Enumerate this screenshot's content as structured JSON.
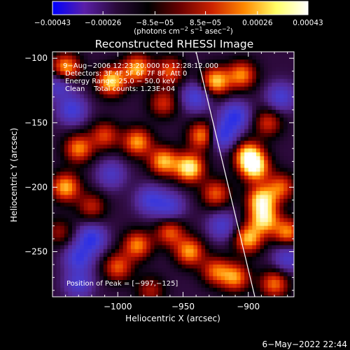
{
  "chart_data": {
    "type": "heatmap",
    "title": "Reconstructed RHESSI Image",
    "xlabel": "Heliocentric X (arcsec)",
    "ylabel": "Heliocentric Y (arcsec)",
    "xlim": [
      -1050,
      -865
    ],
    "ylim": [
      -285,
      -95
    ],
    "x_ticks": [
      -1000,
      -950,
      -900
    ],
    "y_ticks": [
      -100,
      -150,
      -200,
      -250
    ],
    "x_tick_labels": [
      "−1000",
      "−950",
      "−900"
    ],
    "y_tick_labels": [
      "−100",
      "−150",
      "−200",
      "−250"
    ],
    "colorbar": {
      "range": [
        -0.00043,
        0.00043
      ],
      "ticks": [
        -0.00043,
        -0.00026,
        -8.5e-05,
        8.5e-05,
        0.00026,
        0.00043
      ],
      "tick_labels": [
        "−0.00043",
        "−0.00026",
        "−8.5e−05",
        "8.5e−05",
        "0.00026",
        "0.00043"
      ],
      "units_prefix": "(photons cm",
      "units_sup1": "−2",
      "units_mid1": " s",
      "units_sup2": "−1",
      "units_mid2": " asec",
      "units_sup3": "−2",
      "units_suffix": ")",
      "colors": [
        "#0000ff",
        "#5a1fa8",
        "#2a0a3a",
        "#000000",
        "#6a0000",
        "#cc2200",
        "#ff8800",
        "#ffff66",
        "#ffffff"
      ]
    },
    "annotations": [
      "9−Aug−2006 12:23:20.000 to 12:28:12.000",
      "Detectors: 3F 4F 5F 6F 7F 8F, Att 0",
      "Energy Range: 25.0 − 50.0 keV",
      "Clean    Total counts: 1.23E+04"
    ],
    "peak_label": "Position of Peak = [−997,−125]",
    "limb_line": [
      [
        -940,
        -95
      ],
      [
        -895,
        -285
      ]
    ],
    "blobs": [
      {
        "x": -1040,
        "y": -108,
        "v": 0.85
      },
      {
        "x": -985,
        "y": -108,
        "v": 0.8
      },
      {
        "x": -1005,
        "y": -118,
        "v": 0.9
      },
      {
        "x": -960,
        "y": -110,
        "v": 0.6
      },
      {
        "x": -925,
        "y": -118,
        "v": 0.85
      },
      {
        "x": -905,
        "y": -113,
        "v": 0.7
      },
      {
        "x": -965,
        "y": -135,
        "v": 0.5
      },
      {
        "x": -1030,
        "y": -170,
        "v": 0.7
      },
      {
        "x": -1040,
        "y": -200,
        "v": 0.8
      },
      {
        "x": -985,
        "y": -165,
        "v": 0.75
      },
      {
        "x": -965,
        "y": -180,
        "v": 0.8
      },
      {
        "x": -945,
        "y": -185,
        "v": 1.0
      },
      {
        "x": -1010,
        "y": -160,
        "v": 0.55
      },
      {
        "x": -935,
        "y": -160,
        "v": 0.75
      },
      {
        "x": -925,
        "y": -205,
        "v": 0.6
      },
      {
        "x": -900,
        "y": -175,
        "v": 0.85
      },
      {
        "x": -885,
        "y": -150,
        "v": 0.5
      },
      {
        "x": -895,
        "y": -185,
        "v": 0.9
      },
      {
        "x": -890,
        "y": -210,
        "v": 0.9
      },
      {
        "x": -875,
        "y": -200,
        "v": 0.6
      },
      {
        "x": -888,
        "y": -225,
        "v": 0.85
      },
      {
        "x": -870,
        "y": -235,
        "v": 0.7
      },
      {
        "x": -900,
        "y": -240,
        "v": 0.8
      },
      {
        "x": -985,
        "y": -245,
        "v": 0.7
      },
      {
        "x": -960,
        "y": -235,
        "v": 0.6
      },
      {
        "x": -945,
        "y": -250,
        "v": 0.75
      },
      {
        "x": -1000,
        "y": -262,
        "v": 0.6
      },
      {
        "x": -925,
        "y": -265,
        "v": 0.6
      },
      {
        "x": -910,
        "y": -270,
        "v": 0.7
      },
      {
        "x": -880,
        "y": -275,
        "v": 0.65
      },
      {
        "x": -975,
        "y": -280,
        "v": 0.4
      },
      {
        "x": -1045,
        "y": -235,
        "v": 0.35
      },
      {
        "x": -1020,
        "y": -215,
        "v": 0.45
      },
      {
        "x": -910,
        "y": -145,
        "v": -0.7
      },
      {
        "x": -920,
        "y": -160,
        "v": -0.7
      },
      {
        "x": -1020,
        "y": -240,
        "v": -0.7
      },
      {
        "x": -1030,
        "y": -255,
        "v": -0.6
      },
      {
        "x": -1035,
        "y": -140,
        "v": -0.6
      },
      {
        "x": -1045,
        "y": -120,
        "v": -0.55
      },
      {
        "x": -940,
        "y": -130,
        "v": -0.6
      },
      {
        "x": -875,
        "y": -130,
        "v": -0.55
      },
      {
        "x": -960,
        "y": -215,
        "v": -0.5
      },
      {
        "x": -975,
        "y": -210,
        "v": -0.55
      },
      {
        "x": -1005,
        "y": -190,
        "v": -0.45
      },
      {
        "x": -920,
        "y": -230,
        "v": -0.5
      },
      {
        "x": -870,
        "y": -255,
        "v": -0.5
      },
      {
        "x": -1030,
        "y": -275,
        "v": -0.5
      }
    ]
  },
  "footer": {
    "datetime": "6−May−2022 22:44"
  }
}
